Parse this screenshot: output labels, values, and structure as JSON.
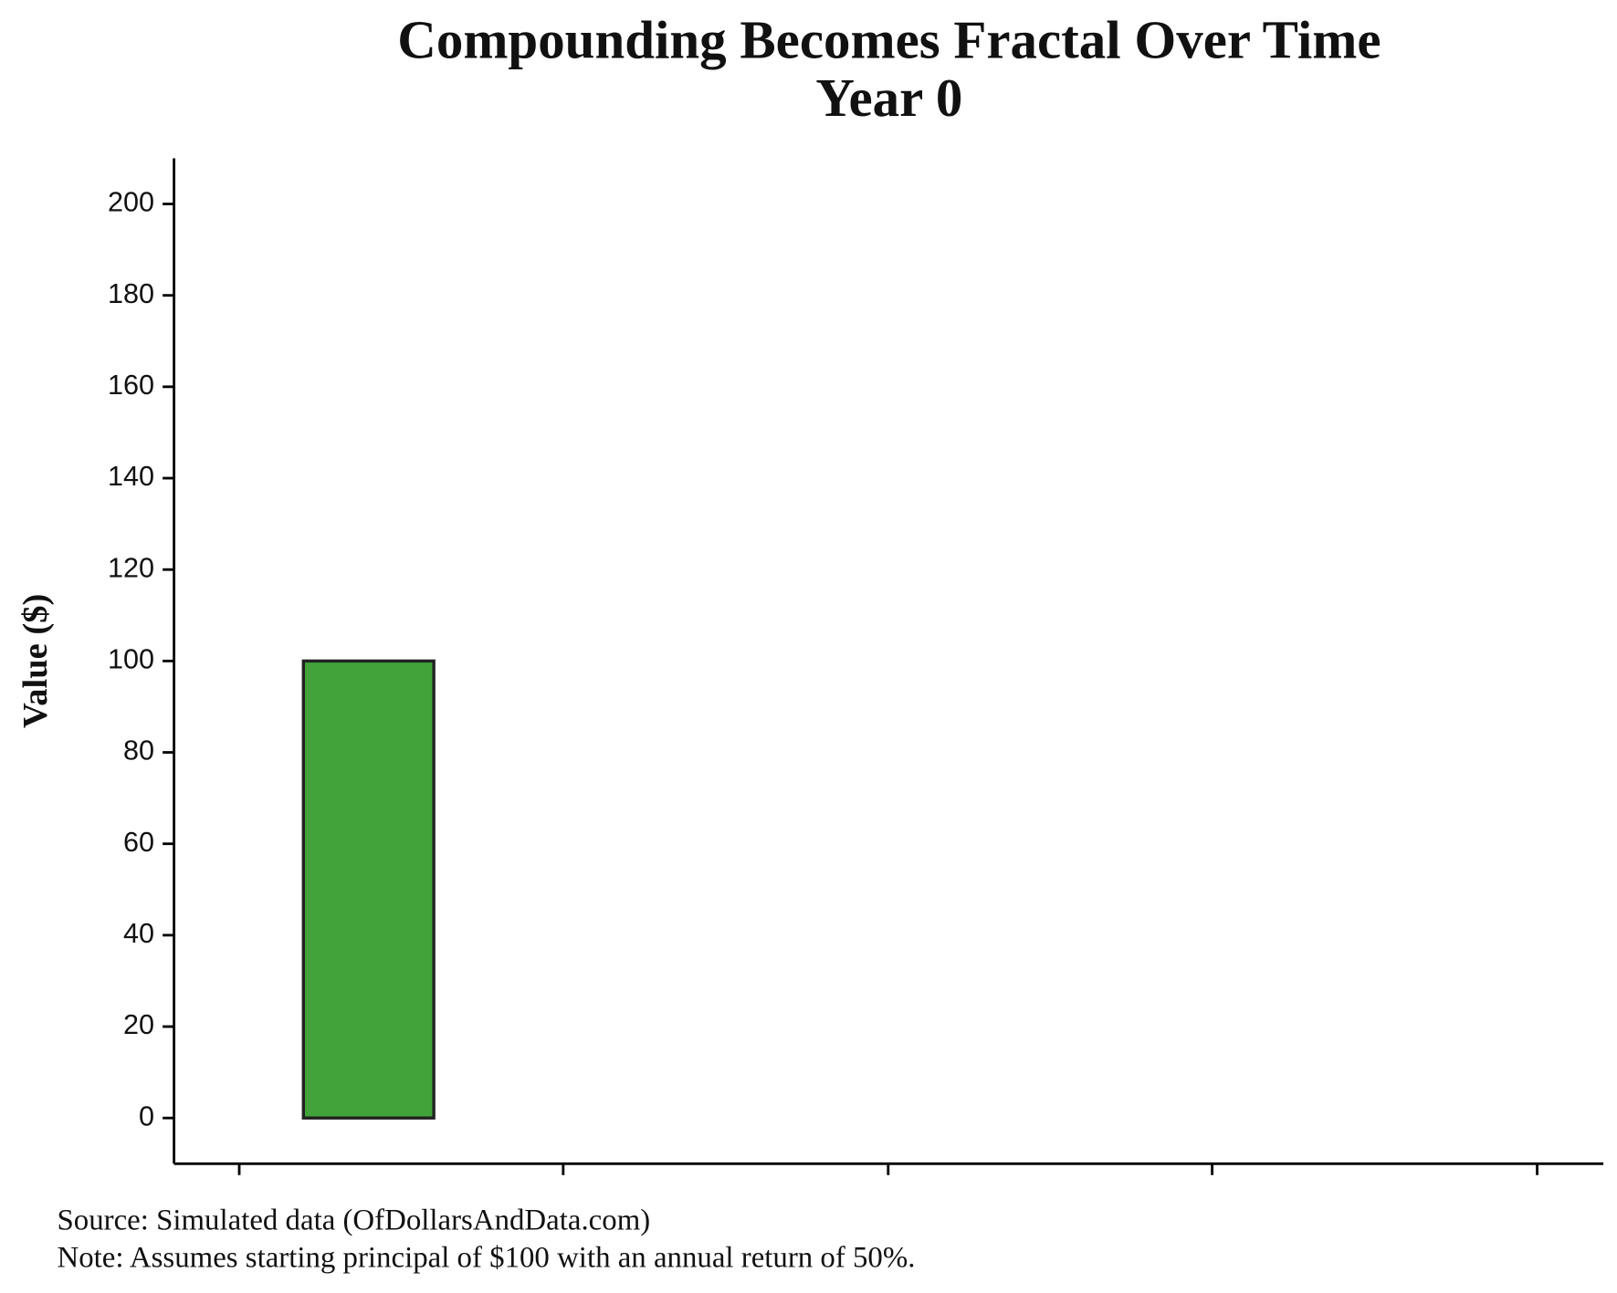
{
  "chart_data": {
    "type": "bar",
    "title": "Compounding Becomes Fractal Over Time",
    "subtitle": "Year 0",
    "y_label": "Value ($)",
    "categories": [
      null
    ],
    "values": [
      100
    ],
    "color": "#41a33a",
    "ylim": [
      -10,
      210
    ],
    "yticks": [
      0,
      20,
      40,
      60,
      80,
      100,
      120,
      140,
      160,
      180,
      200
    ],
    "source": "Source:  Simulated data (OfDollarsAndData.com)",
    "note": "Note:  Assumes starting principal of $100 with an annual return of 50%."
  }
}
